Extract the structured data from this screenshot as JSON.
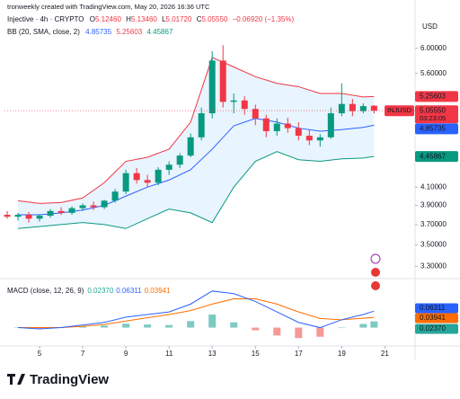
{
  "header": {
    "watermark": "tronweekly created with TradingView.com, May 20, 2026 16:36 UTC",
    "currency": "USD"
  },
  "legend": {
    "symbol": "Injective · 4h · CRYPTO",
    "open": "O",
    "open_value": "5.12460",
    "high": "H",
    "high_value": "5.13460",
    "low": "L",
    "low_value": "5.01720",
    "close": "C",
    "close_value": "5.05550",
    "change": "−0.06920 (−1.35%)",
    "bb": "BB (20, SMA, close, 2)",
    "bb_values": [
      "4.85735",
      "5.25603",
      "4.45867"
    ]
  },
  "price_tags": {
    "upper": "5.25603",
    "symbol": "INJUSD",
    "close": "5.05550",
    "countdown": "03:23:05",
    "middle": "4.85735",
    "lower": "4.45867"
  },
  "chart_data": [
    {
      "type": "candlestick",
      "x": [
        3.5,
        4,
        4.5,
        5,
        5.5,
        6,
        6.5,
        7,
        7.5,
        8,
        8.5,
        9,
        9.5,
        10,
        10.5,
        11,
        11.5,
        12,
        12.5,
        13,
        13.5,
        14,
        14.5,
        15,
        15.5,
        16,
        16.5,
        17,
        17.5,
        18,
        18.5,
        19,
        19.5,
        20,
        20.5
      ],
      "open": [
        3.8,
        3.78,
        3.8,
        3.76,
        3.79,
        3.84,
        3.82,
        3.87,
        3.9,
        3.88,
        3.95,
        4.05,
        4.26,
        4.18,
        4.15,
        4.3,
        4.36,
        4.47,
        4.7,
        5.02,
        5.8,
        5.18,
        5.2,
        5.08,
        4.95,
        4.78,
        4.88,
        4.82,
        4.72,
        4.66,
        4.7,
        5.02,
        5.15,
        5.05,
        5.1246
      ],
      "high": [
        3.84,
        3.82,
        3.83,
        3.81,
        3.86,
        3.88,
        3.89,
        3.92,
        3.94,
        3.96,
        4.08,
        4.3,
        4.32,
        4.24,
        4.33,
        4.4,
        4.5,
        4.75,
        5.1,
        5.95,
        6.05,
        5.3,
        5.26,
        5.14,
        5.0,
        4.95,
        4.96,
        4.9,
        4.8,
        4.74,
        5.1,
        5.45,
        5.22,
        5.16,
        5.1346
      ],
      "low": [
        3.76,
        3.74,
        3.72,
        3.73,
        3.77,
        3.8,
        3.8,
        3.84,
        3.85,
        3.86,
        3.93,
        4.02,
        4.14,
        4.1,
        4.12,
        4.24,
        4.32,
        4.45,
        4.66,
        4.95,
        5.1,
        5.02,
        5.0,
        4.86,
        4.7,
        4.72,
        4.76,
        4.66,
        4.6,
        4.58,
        4.68,
        4.98,
        4.98,
        5.02,
        5.0172
      ],
      "close": [
        3.78,
        3.8,
        3.76,
        3.79,
        3.84,
        3.82,
        3.87,
        3.9,
        3.88,
        3.95,
        4.05,
        4.26,
        4.18,
        4.15,
        4.3,
        4.36,
        4.47,
        4.7,
        5.02,
        5.8,
        5.18,
        5.2,
        5.08,
        4.95,
        4.78,
        4.88,
        4.82,
        4.72,
        4.66,
        4.7,
        5.02,
        5.15,
        5.05,
        5.12,
        5.0555
      ],
      "up_color": "#089981",
      "down_color": "#f23645",
      "xlim": [
        3.375,
        22.4
      ],
      "xticks": [
        5,
        7,
        9,
        11,
        13,
        15,
        17,
        19,
        21
      ],
      "ylim": [
        3.27,
        6.13
      ],
      "log_scale": true,
      "yticks": [
        {
          "value": 6,
          "label": "6.00000"
        },
        {
          "value": 5.6,
          "label": "5.60000"
        },
        {
          "value": 4.1,
          "label": "4.10000"
        },
        {
          "value": 3.9,
          "label": "3.90000"
        },
        {
          "value": 3.7,
          "label": "3.70000"
        },
        {
          "value": 3.5,
          "label": "3.50000"
        },
        {
          "value": 3.3,
          "label": "3.30000"
        }
      ],
      "bollinger": {
        "x": [
          4,
          5,
          6,
          7,
          8,
          9,
          10,
          11,
          12,
          13,
          14,
          15,
          16,
          17,
          18,
          19,
          20,
          20.5
        ],
        "upper": [
          3.95,
          3.92,
          3.93,
          3.98,
          4.15,
          4.4,
          4.45,
          4.55,
          4.9,
          5.85,
          5.7,
          5.55,
          5.45,
          5.4,
          5.3,
          5.3,
          5.25,
          5.25603
        ],
        "middle": [
          3.8,
          3.8,
          3.82,
          3.85,
          3.9,
          4.0,
          4.1,
          4.18,
          4.3,
          4.55,
          4.85,
          4.95,
          4.9,
          4.82,
          4.78,
          4.8,
          4.83,
          4.85735
        ],
        "lower": [
          3.66,
          3.68,
          3.7,
          3.72,
          3.7,
          3.66,
          3.76,
          3.86,
          3.82,
          3.72,
          4.1,
          4.4,
          4.52,
          4.42,
          4.4,
          4.43,
          4.44,
          4.45867
        ],
        "upper_color": "#f23645",
        "middle_color": "#2962ff",
        "lower_color": "#089981",
        "fill_color": "#2196f3"
      }
    },
    {
      "type": "macd",
      "title": "MACD (close, 12, 26, 9)",
      "value_labels": [
        "0.02370",
        "0.06311",
        "0.03941"
      ],
      "x": [
        4,
        5,
        6,
        7,
        8,
        9,
        10,
        11,
        12,
        13,
        14,
        15,
        16,
        17,
        18,
        19,
        20,
        20.5
      ],
      "macd": [
        0.0,
        -0.005,
        0.0,
        0.01,
        0.02,
        0.04,
        0.05,
        0.06,
        0.09,
        0.14,
        0.13,
        0.1,
        0.06,
        0.02,
        0.0,
        0.03,
        0.05,
        0.06311
      ],
      "signal": [
        0.0,
        0.0,
        0.0,
        0.005,
        0.012,
        0.025,
        0.038,
        0.05,
        0.065,
        0.09,
        0.11,
        0.11,
        0.09,
        0.06,
        0.035,
        0.03,
        0.036,
        0.03941
      ],
      "histogram": [
        0.0,
        -0.005,
        0.0,
        0.005,
        0.008,
        0.015,
        0.012,
        0.01,
        0.025,
        0.05,
        0.02,
        -0.01,
        -0.03,
        -0.04,
        -0.035,
        0.0,
        0.014,
        0.0237
      ],
      "xlim": [
        3.375,
        22.4
      ],
      "ylim": [
        -0.06,
        0.16
      ],
      "macd_color": "#2962ff",
      "signal_color": "#ff6d00",
      "hist_up_color": "#26a69a",
      "hist_down_color": "#ef5350"
    }
  ],
  "footer": {
    "brand": "TradingView"
  }
}
